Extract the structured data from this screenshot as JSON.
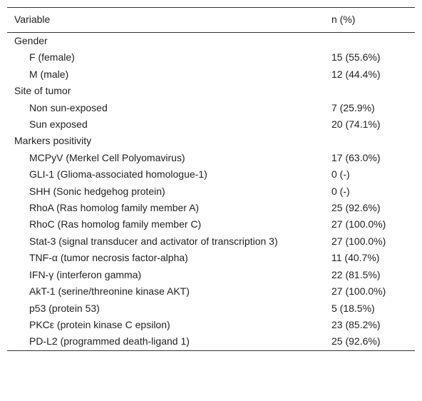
{
  "table": {
    "header": [
      "Variable",
      "n (%)"
    ],
    "groups": [
      {
        "title": "Gender",
        "items": [
          [
            "F (female)",
            "15 (55.6%)"
          ],
          [
            "M (male)",
            "12 (44.4%)"
          ]
        ]
      },
      {
        "title": "Site of tumor",
        "items": [
          [
            "Non sun-exposed",
            "7 (25.9%)"
          ],
          [
            "Sun exposed",
            "20 (74.1%)"
          ]
        ]
      },
      {
        "title": "Markers positivity",
        "items": [
          [
            "MCPyV (Merkel Cell Polyomavirus)",
            "17 (63.0%)"
          ],
          [
            "GLI-1 (Glioma-associated homologue-1)",
            "0 (-)"
          ],
          [
            "SHH (Sonic hedgehog protein)",
            "0 (-)"
          ],
          [
            "RhoA (Ras homolog family member A)",
            "25 (92.6%)"
          ],
          [
            "RhoC (Ras homolog family member C)",
            "27 (100.0%)"
          ],
          [
            "Stat-3 (signal transducer and activator of transcription 3)",
            "27 (100.0%)"
          ],
          [
            "TNF-α (tumor necrosis factor-alpha)",
            "11 (40.7%)"
          ],
          [
            "IFN-γ (interferon gamma)",
            "22 (81.5%)"
          ],
          [
            "AkT-1 (serine/threonine kinase AKT)",
            "27 (100.0%)"
          ],
          [
            "p53 (protein 53)",
            "5 (18.5%)"
          ],
          [
            "PKCε (protein kinase C epsilon)",
            "23 (85.2%)"
          ],
          [
            "PD-L2 (programmed death-ligand 1)",
            "25 (92.6%)"
          ]
        ]
      }
    ]
  }
}
